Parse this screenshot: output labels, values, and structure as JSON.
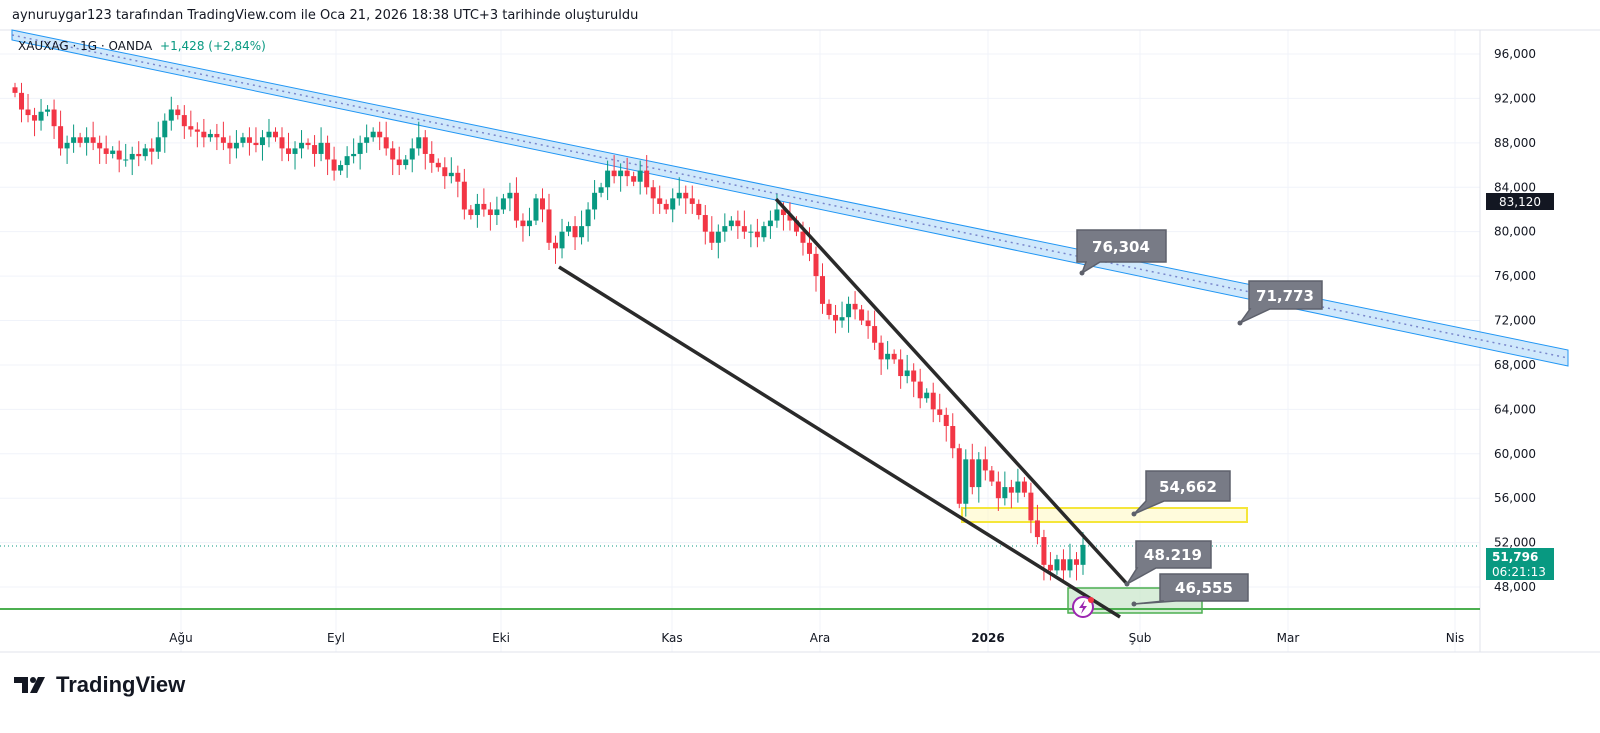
{
  "caption": "aynuruygar123 tarafından TradingView.com ile Oca 21, 2026 18:38 UTC+3 tarihinde oluşturuldu",
  "legend": {
    "symbol": "XAUXAG · 1G · OANDA",
    "change": "+1,428 (+2,84%)"
  },
  "colors": {
    "up": "#089981",
    "down": "#f23645",
    "channel": "#2196f3",
    "yellow": "#f5e639",
    "green": "#4caf50"
  },
  "logo": {
    "text": "TradingView",
    "icon": "tradingview-logo-icon"
  },
  "chart_data": {
    "type": "candlestick",
    "title": "XAUXAG · 1G · OANDA",
    "ylim": [
      44000,
      98000
    ],
    "y_ticks": [
      "96,000",
      "92,000",
      "88,000",
      "84,000",
      "80,000",
      "76,000",
      "72,000",
      "68,000",
      "64,000",
      "60,000",
      "56,000",
      "52,000",
      "48,000"
    ],
    "y_tick_values": [
      96000,
      92000,
      88000,
      84000,
      80000,
      76000,
      72000,
      68000,
      64000,
      60000,
      56000,
      52000,
      48000
    ],
    "x_ticks": [
      "Ağu",
      "Eyl",
      "Eki",
      "Kas",
      "Ara",
      "2026",
      "Şub",
      "Mar",
      "Nis"
    ],
    "first_open": 93.0,
    "closes_thousands": [
      92.5,
      91,
      90.5,
      90,
      90.8,
      91,
      89.5,
      87.5,
      88,
      88.5,
      88,
      88.5,
      88,
      87.5,
      87,
      87.3,
      86.5,
      86.5,
      87,
      86.8,
      87.5,
      87.2,
      88.5,
      90,
      91,
      90.5,
      89.5,
      89.2,
      89,
      88.5,
      88.8,
      88.5,
      88,
      87.5,
      88,
      88.5,
      88,
      87.8,
      88.5,
      89,
      88.5,
      87.5,
      87,
      87.5,
      88,
      87.8,
      87,
      88,
      86.5,
      85.5,
      86,
      86.8,
      87,
      88,
      88.5,
      89,
      88.5,
      87.5,
      86.5,
      86,
      86.5,
      87.5,
      88.5,
      87,
      86.2,
      85.8,
      85,
      85.3,
      84.5,
      82,
      81.5,
      82.5,
      82,
      81.5,
      82,
      83,
      83.5,
      81,
      80.5,
      81,
      83,
      82,
      79,
      78.5,
      80,
      80.5,
      79.5,
      80.5,
      82,
      83.5,
      84,
      85.5,
      85,
      85.5,
      85,
      84.5,
      85.5,
      84,
      83,
      82.5,
      82,
      83,
      83.5,
      83,
      82.5,
      81.5,
      80,
      79,
      80,
      80.5,
      81,
      80.5,
      80,
      80,
      79.5,
      80.5,
      81,
      82,
      81.5,
      81,
      80,
      79,
      78,
      76,
      73.5,
      72.5,
      72,
      72.3,
      73.5,
      73,
      72,
      71.5,
      70,
      68.5,
      69,
      68.5,
      67,
      67.5,
      66.5,
      65,
      65.5,
      64,
      63.5,
      62.5,
      60.5,
      55.5,
      59.5,
      57,
      59.5,
      58.5,
      57.5,
      56,
      57,
      56.5,
      57.5,
      56.5,
      54,
      52.5,
      50,
      49.5,
      50.5,
      49.5,
      50.5,
      50,
      51.796
    ],
    "last_price": {
      "value": "51,796",
      "countdown": "06:21:13"
    },
    "crosshair_label": "83,120",
    "annotations": [
      "76,304",
      "71,773",
      "54,662",
      "48.219",
      "46,555"
    ]
  }
}
